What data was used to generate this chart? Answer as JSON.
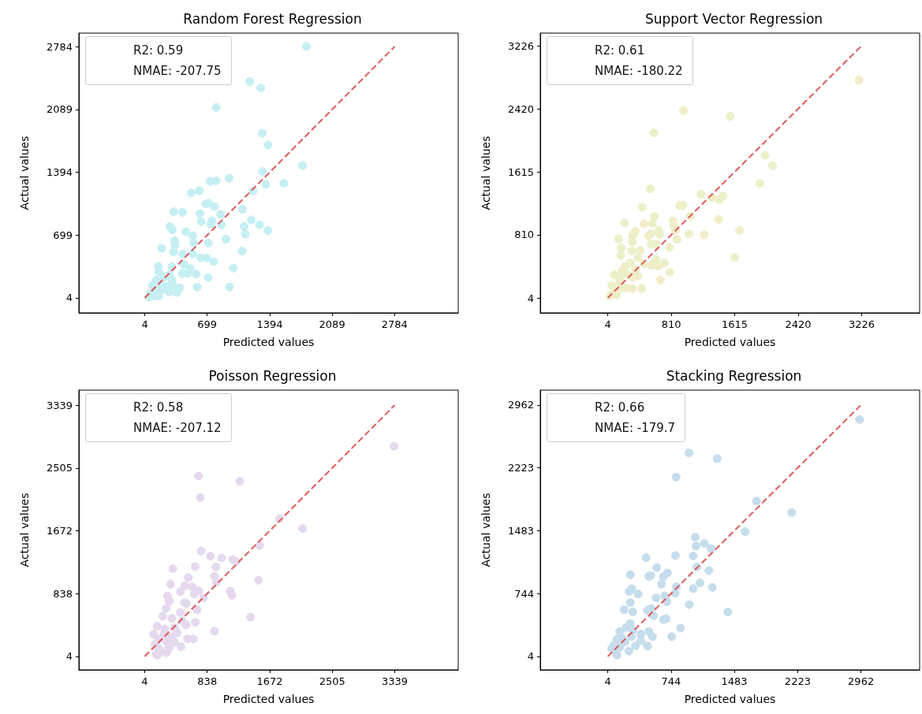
{
  "chart_data": [
    {
      "type": "scatter",
      "title": "Random Forest Regression",
      "xlabel": "Predicted values",
      "ylabel": "Actual values",
      "annotations": [
        "R2: 0.59",
        "NMAE: -207.75"
      ],
      "xlim": [
        -729,
        3492
      ],
      "ylim": [
        -162,
        2934
      ],
      "xticks": [
        4,
        699,
        1394,
        2089,
        2784
      ],
      "yticks": [
        4,
        699,
        1394,
        2089,
        2784
      ],
      "grid": false,
      "marker": "circle",
      "series": [
        {
          "color": "#c5eff3",
          "x": [
            1803,
            1173,
            1295,
            798,
            1312,
            1376,
            1760,
            1315,
            943,
            731,
            798,
            1350,
            1551,
            1208,
            521,
            612,
            684,
            719,
            780,
            1091,
            327,
            423,
            617,
            847,
            632,
            751,
            739,
            856,
            1190,
            1280,
            1373,
            1109,
            1123,
            283,
            312,
            463,
            539,
            908,
            335,
            341,
            548,
            713,
            193,
            324,
            426,
            539,
            626,
            693,
            771,
            1088,
            989,
            155,
            306,
            437,
            510,
            577,
            710,
            946,
            588,
            394,
            362,
            161,
            219,
            277,
            132,
            88,
            117,
            68,
            161,
            51,
            190,
            248,
            306,
            423,
            481,
            219,
            146,
            321,
            277,
            103
          ],
          "values": [
            2786,
            2399,
            2326,
            2111,
            1826,
            1695,
            1468,
            1401,
            1328,
            1293,
            1299,
            1261,
            1273,
            1188,
            1165,
            1191,
            1046,
            1052,
            1014,
            985,
            958,
            950,
            938,
            929,
            848,
            857,
            819,
            813,
            868,
            813,
            749,
            793,
            708,
            793,
            755,
            734,
            691,
            653,
            638,
            586,
            609,
            609,
            551,
            513,
            487,
            493,
            449,
            446,
            406,
            522,
            333,
            353,
            347,
            376,
            333,
            266,
            231,
            123,
            123,
            115,
            62,
            289,
            231,
            260,
            202,
            144,
            100,
            56,
            27,
            13,
            144,
            129,
            202,
            275,
            275,
            100,
            71,
            144,
            71,
            27
          ]
        },
        {
          "type": "line",
          "marker": "none",
          "line_style": "dashed",
          "color": "#e05a5a",
          "x": [
            4,
            2784
          ],
          "values": [
            4,
            2784
          ]
        }
      ]
    },
    {
      "type": "scatter",
      "title": "Support Vector Regression",
      "xlabel": "Predicted values",
      "ylabel": "Actual values",
      "annotations": [
        "R2: 0.61",
        "NMAE: -180.22"
      ],
      "xlim": [
        -852,
        3962
      ],
      "ylim": [
        -187,
        3388
      ],
      "xticks": [
        4,
        810,
        1615,
        2420,
        3226
      ],
      "yticks": [
        4,
        810,
        1615,
        2420,
        3226
      ],
      "grid": false,
      "marker": "circle",
      "series": [
        {
          "color": "#eeeec8",
          "x": [
            3190,
            965,
            1560,
            590,
            1999,
            2096,
            1935,
            546,
            1189,
            1326,
            1420,
            1467,
            918,
            958,
            442,
            1052,
            596,
            1413,
            218,
            463,
            573,
            831,
            841,
            355,
            653,
            553,
            523,
            663,
            1035,
            1229,
            1678,
            864,
            141,
            322,
            315,
            556,
            616,
            881,
            787,
            175,
            309,
            416,
            171,
            389,
            616,
            724,
            643,
            466,
            556,
            791,
            673,
            1617,
            436,
            315,
            238,
            389,
            88,
            188,
            255,
            155,
            88,
            37,
            121,
            188,
            54,
            155,
            322,
            355,
            288,
            222
          ],
          "values": [
            2788,
            2397,
            2323,
            2114,
            1827,
            1696,
            1467,
            1399,
            1328,
            1285,
            1261,
            1305,
            1187,
            1187,
            1163,
            1049,
            1049,
            1008,
            961,
            948,
            954,
            988,
            934,
            857,
            867,
            823,
            799,
            813,
            820,
            809,
            867,
            867,
            759,
            796,
            722,
            695,
            695,
            749,
            651,
            644,
            604,
            611,
            547,
            520,
            496,
            449,
            412,
            442,
            419,
            334,
            233,
            520,
            125,
            125,
            132,
            284,
            301,
            351,
            301,
            199,
            98,
            31,
            48,
            132,
            166,
            250,
            267,
            368,
            452,
            402
          ]
        },
        {
          "type": "line",
          "marker": "none",
          "line_style": "dashed",
          "color": "#e05a5a",
          "x": [
            4,
            3226
          ],
          "values": [
            4,
            3226
          ]
        }
      ]
    },
    {
      "type": "scatter",
      "title": "Poisson Regression",
      "xlabel": "Predicted values",
      "ylabel": "Actual values",
      "annotations": [
        "R2: 0.58",
        "NMAE: -207.12"
      ],
      "xlim": [
        -874,
        4186
      ],
      "ylim": [
        -174,
        3538
      ],
      "xticks": [
        4,
        838,
        1672,
        2505,
        3339
      ],
      "yticks": [
        4,
        838,
        1672,
        2505,
        3339
      ],
      "grid": false,
      "marker": "circle",
      "series": [
        {
          "color": "#e4d9ee",
          "x": [
            3329,
            722,
            1273,
            746,
            1802,
            2109,
            1537,
            757,
            879,
            1029,
            1178,
            1224,
            380,
            677,
            952,
            934,
            959,
            1523,
            586,
            349,
            541,
            638,
            481,
            725,
            666,
            788,
            1144,
            1168,
            307,
            332,
            534,
            562,
            701,
            481,
            290,
            244,
            366,
            506,
            558,
            680,
            1415,
            934,
            168,
            272,
            401,
            576,
            652,
            488,
            366,
            297,
            192,
            140,
            192,
            157,
            227,
            332,
            401,
            262,
            122,
            175,
            297,
            436
          ],
          "values": [
            2792,
            2398,
            2328,
            2112,
            1830,
            1701,
            1475,
            1405,
            1335,
            1311,
            1290,
            1262,
            1168,
            1196,
            1192,
            1067,
            990,
            1015,
            1050,
            962,
            945,
            928,
            865,
            875,
            830,
            781,
            872,
            816,
            806,
            736,
            718,
            708,
            621,
            586,
            642,
            537,
            509,
            474,
            422,
            457,
            527,
            339,
            405,
            370,
            387,
            237,
            237,
            133,
            265,
            196,
            231,
            161,
            109,
            39,
            74,
            126,
            196,
            300,
            300,
            21,
            56,
            318
          ]
        },
        {
          "type": "line",
          "marker": "none",
          "line_style": "dashed",
          "color": "#e05a5a",
          "x": [
            4,
            3339
          ],
          "values": [
            4,
            3339
          ]
        }
      ]
    },
    {
      "type": "scatter",
      "title": "Stacking Regression",
      "xlabel": "Predicted values",
      "ylabel": "Actual values",
      "annotations": [
        "R2: 0.66",
        "NMAE: -179.7"
      ],
      "xlim": [
        -784,
        3647
      ],
      "ylim": [
        -154,
        3137
      ],
      "xticks": [
        4,
        744,
        1483,
        2223,
        2962
      ],
      "yticks": [
        4,
        744,
        1483,
        2223,
        2962
      ],
      "grid": false,
      "marker": "circle",
      "series": [
        {
          "color": "#c5ddec",
          "x": [
            2946,
            953,
            1283,
            804,
            1741,
            2152,
            1608,
            1027,
            1036,
            1132,
            1209,
            452,
            795,
            1002,
            576,
            1045,
            1184,
            267,
            483,
            508,
            653,
            702,
            631,
            807,
            1082,
            1002,
            1225,
            285,
            254,
            359,
            569,
            668,
            696,
            792,
            267,
            956,
            1407,
            196,
            298,
            468,
            514,
            539,
            653,
            687,
            267,
            220,
            854,
            752,
            526,
            468,
            143,
            298,
            390,
            483,
            112,
            205,
            50,
            97,
            143,
            251,
            328,
            81,
            174,
            282,
            112,
            390
          ],
          "values": [
            2791,
            2399,
            2331,
            2114,
            1833,
            1697,
            1472,
            1407,
            1302,
            1333,
            1274,
            1166,
            1191,
            1187,
            1048,
            1055,
            1014,
            965,
            946,
            956,
            940,
            987,
            854,
            823,
            869,
            801,
            817,
            801,
            767,
            739,
            693,
            715,
            647,
            746,
            637,
            613,
            526,
            554,
            529,
            545,
            569,
            483,
            437,
            446,
            390,
            344,
            338,
            236,
            236,
            128,
            298,
            313,
            267,
            298,
            205,
            174,
            97,
            50,
            112,
            66,
            128,
            143,
            220,
            236,
            19,
            189
          ]
        },
        {
          "type": "line",
          "marker": "none",
          "line_style": "dashed",
          "color": "#e05a5a",
          "x": [
            4,
            2962
          ],
          "values": [
            4,
            2962
          ]
        }
      ]
    }
  ]
}
